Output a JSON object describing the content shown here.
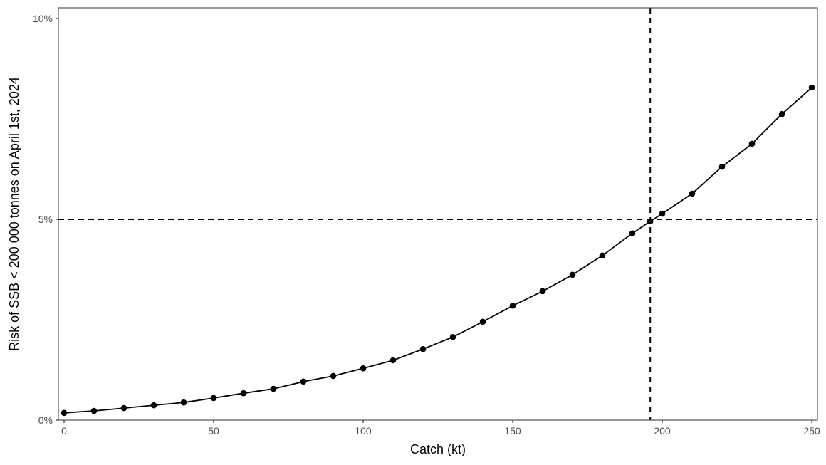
{
  "chart_data": {
    "type": "line",
    "title": "",
    "xlabel": "Catch (kt)",
    "ylabel": "Risk of SSB < 200 000 tonnes on April 1st, 2024",
    "xlim": [
      0,
      250
    ],
    "ylim": [
      0,
      10
    ],
    "x_ticks": [
      0,
      50,
      100,
      150,
      200,
      250
    ],
    "x_tick_labels": [
      "0",
      "50",
      "100",
      "150",
      "200",
      "250"
    ],
    "y_ticks": [
      0,
      5,
      10
    ],
    "y_tick_labels": [
      "0%",
      "5%",
      "10%"
    ],
    "grid": false,
    "legend": null,
    "series": [
      {
        "name": "Risk",
        "x": [
          0,
          10,
          20,
          30,
          40,
          50,
          60,
          70,
          80,
          90,
          100,
          110,
          120,
          130,
          140,
          150,
          160,
          170,
          180,
          190,
          196,
          200,
          210,
          220,
          230,
          240,
          250
        ],
        "values": [
          0.18,
          0.23,
          0.3,
          0.37,
          0.44,
          0.55,
          0.67,
          0.78,
          0.96,
          1.1,
          1.29,
          1.49,
          1.77,
          2.07,
          2.45,
          2.85,
          3.21,
          3.62,
          4.1,
          4.65,
          4.95,
          5.14,
          5.64,
          6.31,
          6.88,
          7.62,
          8.28
        ],
        "color": "#000000"
      }
    ],
    "annotations": [
      {
        "type": "hline",
        "y": 5,
        "style": "dashed",
        "color": "#000000"
      },
      {
        "type": "vline",
        "x": 196,
        "style": "dashed",
        "color": "#000000"
      }
    ]
  }
}
